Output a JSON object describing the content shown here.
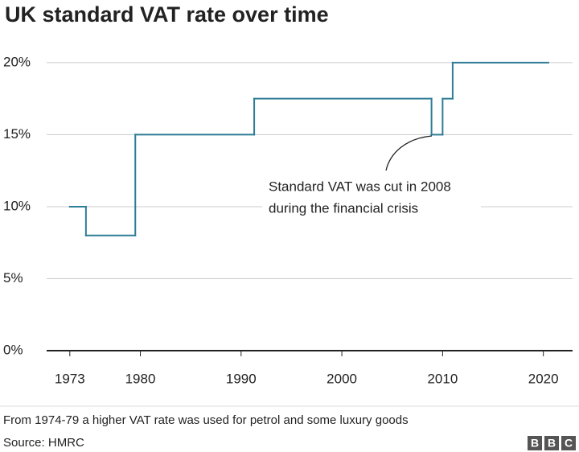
{
  "chart_data": {
    "type": "step",
    "title": "UK standard VAT rate over time",
    "x": [
      1973,
      1974.6,
      1979.5,
      1991.3,
      2008.9,
      2010,
      2011,
      2020.5
    ],
    "values": [
      10,
      8,
      15,
      17.5,
      15,
      17.5,
      20,
      20
    ],
    "color": "#2f7c97",
    "xlim": [
      1970.7,
      2022.9
    ],
    "xticks": [
      1973,
      1980,
      1990,
      2000,
      2010,
      2020
    ],
    "ylim": [
      0,
      21
    ],
    "yticks": [
      {
        "value": 0,
        "label": "0%"
      },
      {
        "value": 5,
        "label": "5%"
      },
      {
        "value": 10,
        "label": "10%"
      },
      {
        "value": 15,
        "label": "15%"
      },
      {
        "value": 20,
        "label": "20%"
      }
    ],
    "grid": true,
    "annotation": [
      "Standard VAT was cut in 2008",
      "during the financial crisis"
    ],
    "footnote": "From 1974-79 a higher VAT rate was used for petrol and some luxury goods",
    "source": "Source: HMRC",
    "logo": [
      "B",
      "B",
      "C"
    ]
  }
}
